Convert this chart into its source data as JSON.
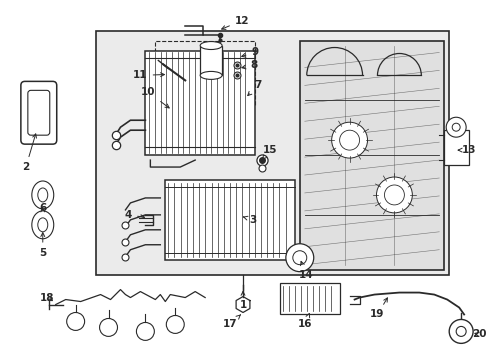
{
  "bg_color": "#f0f0f0",
  "box_bg": "#e8e8e8",
  "line_color": "#2a2a2a",
  "fig_width": 4.9,
  "fig_height": 3.6,
  "dpi": 100
}
